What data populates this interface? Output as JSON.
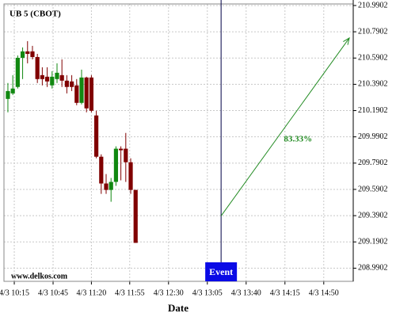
{
  "chart_data": {
    "type": "candlestick",
    "title": "UB 5 (CBOT)",
    "watermark": "www.delkos.com",
    "x_label": "Date",
    "x": [
      0,
      1,
      2,
      3,
      4,
      5,
      6,
      7,
      8,
      9,
      10,
      11,
      12,
      13,
      14,
      15,
      16,
      17,
      18,
      19,
      20,
      21,
      22,
      23,
      24,
      25,
      26
    ],
    "open": [
      210.279,
      210.321,
      210.37,
      210.592,
      210.641,
      210.641,
      210.598,
      210.46,
      210.448,
      210.382,
      210.43,
      210.46,
      210.418,
      210.412,
      210.382,
      210.249,
      210.442,
      210.442,
      210.153,
      209.839,
      209.635,
      209.586,
      209.647,
      209.9,
      209.9,
      209.797,
      209.586
    ],
    "high": [
      210.4,
      210.46,
      210.61,
      210.671,
      210.719,
      210.683,
      210.622,
      210.52,
      210.52,
      210.49,
      210.55,
      210.58,
      210.46,
      210.46,
      210.43,
      210.502,
      210.448,
      210.46,
      210.189,
      209.857,
      209.707,
      209.677,
      209.918,
      209.918,
      210.02,
      209.827,
      209.586
    ],
    "low": [
      210.177,
      210.309,
      210.358,
      210.43,
      210.55,
      210.58,
      210.4,
      210.382,
      210.37,
      210.358,
      210.4,
      210.37,
      210.321,
      210.339,
      210.231,
      210.237,
      210.177,
      210.177,
      209.827,
      209.556,
      209.556,
      209.496,
      209.617,
      209.659,
      209.647,
      209.556,
      209.183
    ],
    "close": [
      210.339,
      210.358,
      210.592,
      210.641,
      210.622,
      210.598,
      210.43,
      210.43,
      210.412,
      210.448,
      210.478,
      210.418,
      210.37,
      210.37,
      210.249,
      210.442,
      210.207,
      210.189,
      209.839,
      209.635,
      209.586,
      209.647,
      209.9,
      209.888,
      209.797,
      209.586,
      209.183
    ],
    "up_color": "#118811",
    "down_color": "#800000",
    "xlim": [
      -0.8,
      70.3
    ],
    "xticks": [
      {
        "value": 1.3,
        "label": "4/3 10:15"
      },
      {
        "value": 9.2,
        "label": "4/3 10:45"
      },
      {
        "value": 17.0,
        "label": "4/3 11:20"
      },
      {
        "value": 24.8,
        "label": "4/3 11:55"
      },
      {
        "value": 32.7,
        "label": "4/3 12:30"
      },
      {
        "value": 40.6,
        "label": "4/3 13:05"
      },
      {
        "value": 48.5,
        "label": "4/3 13:40"
      },
      {
        "value": 56.4,
        "label": "4/3 14:15"
      },
      {
        "value": 64.3,
        "label": "4/3 14:50"
      }
    ],
    "ylim": [
      208.89,
      211.002
    ],
    "yticks": [
      210.9902,
      210.7902,
      210.5902,
      210.3902,
      210.1902,
      209.9902,
      209.7902,
      209.5902,
      209.3902,
      209.1902,
      208.9902
    ],
    "grid": true,
    "event": {
      "label": "Event",
      "x": 43.4,
      "color": "#0a0ae6"
    },
    "arrow": {
      "x": [
        43.4,
        69.5
      ],
      "y": [
        209.388,
        210.743
      ],
      "label": "83.33%",
      "color": "#228b22"
    }
  }
}
